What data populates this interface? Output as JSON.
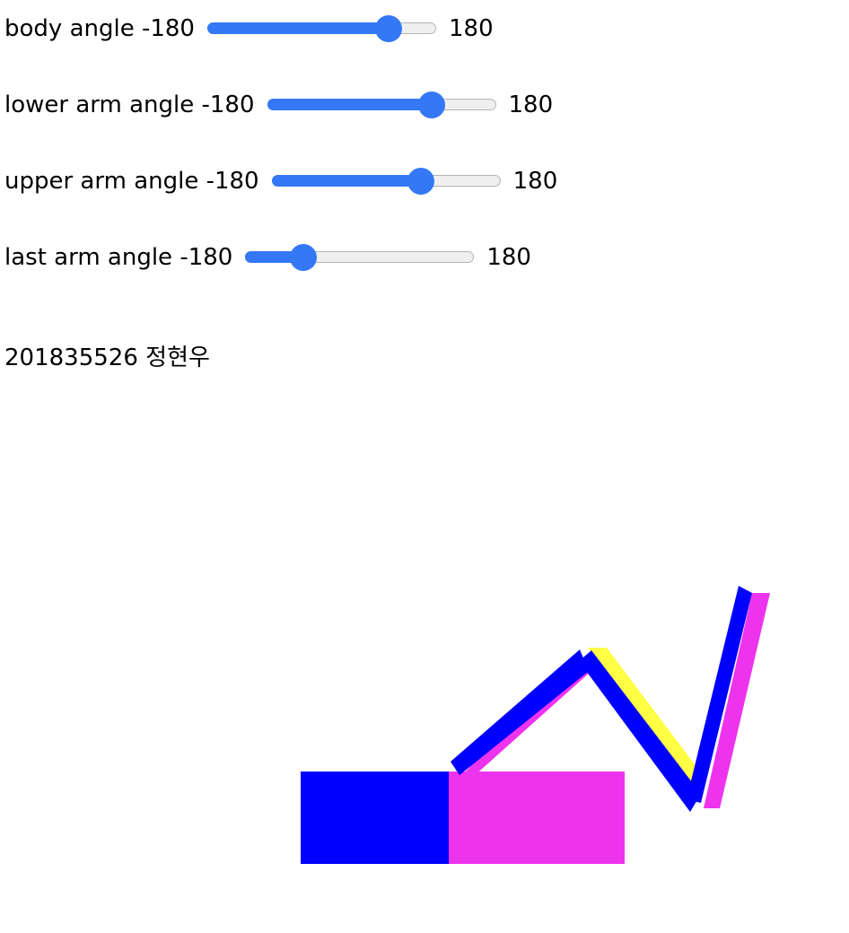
{
  "controls": [
    {
      "label": "body angle -180",
      "max_label": "180",
      "min": -180,
      "max": 180,
      "value": 120
    },
    {
      "label": "lower arm angle -180",
      "max_label": "180",
      "min": -180,
      "max": 180,
      "value": 90
    },
    {
      "label": "upper arm angle -180",
      "max_label": "180",
      "min": -180,
      "max": 180,
      "value": 62
    },
    {
      "label": "last arm angle -180",
      "max_label": "180",
      "min": -180,
      "max": 180,
      "value": -101
    }
  ],
  "student": {
    "text": "201835526 정현우"
  },
  "colors": {
    "accent": "#3478f6",
    "blue": "#0000ff",
    "magenta": "#ee33ee",
    "yellow": "#ffff44"
  }
}
